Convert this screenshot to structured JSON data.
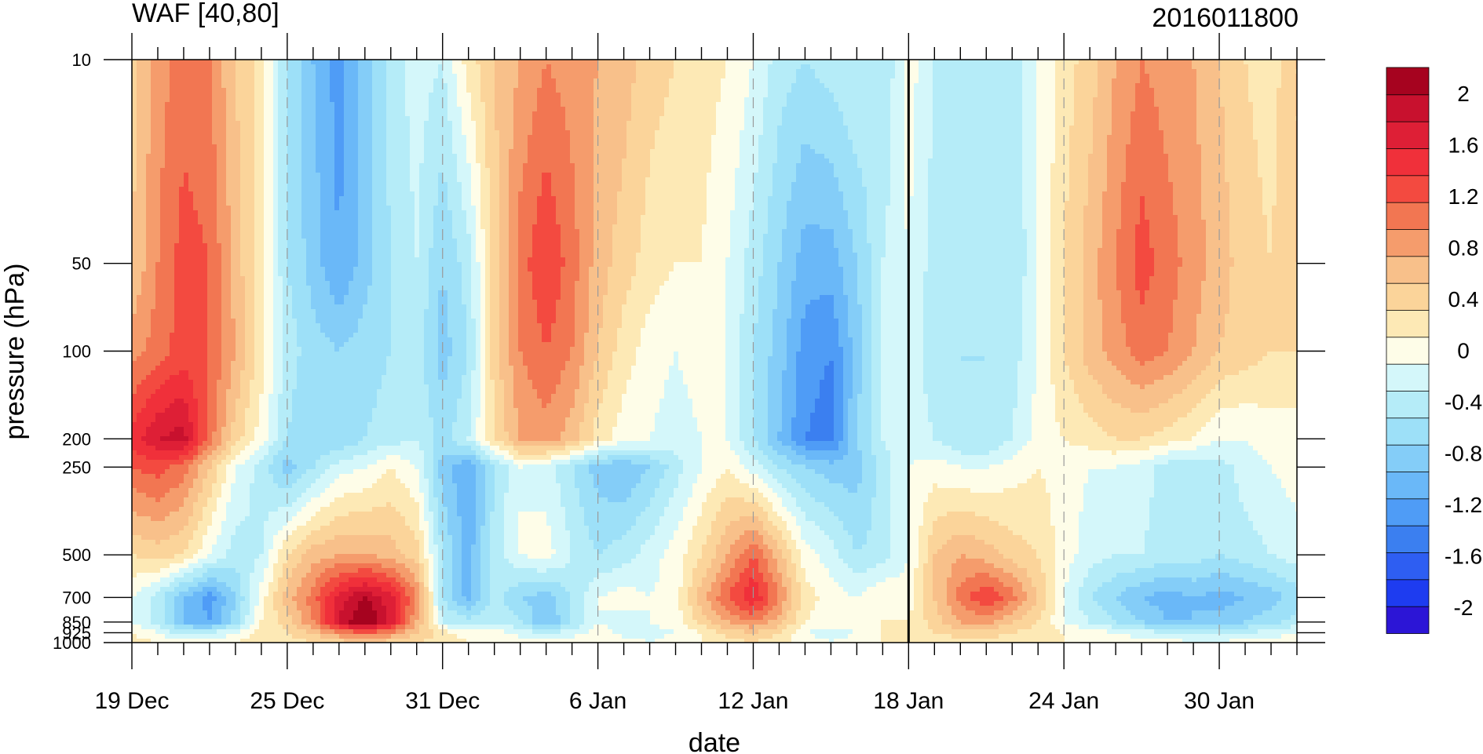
{
  "title_left": "WAF [40,80]",
  "title_right": "2016011800",
  "chart_data": {
    "type": "heatmap",
    "xlabel": "date",
    "ylabel": "pressure (hPa)",
    "x_ticks": [
      "19 Dec",
      "25 Dec",
      "31 Dec",
      "6 Jan",
      "12 Jan",
      "18 Jan",
      "24 Jan",
      "30 Jan"
    ],
    "x_tick_days": [
      0,
      6,
      12,
      18,
      24,
      30,
      36,
      42
    ],
    "x_range_days": [
      0,
      45
    ],
    "y_ticks": [
      10,
      50,
      100,
      200,
      250,
      500,
      700,
      850,
      925,
      1000
    ],
    "y_range_hPa": [
      1000,
      10
    ],
    "current_time_marker": "18 Jan",
    "colorbar": {
      "labels": [
        "2",
        "1.6",
        "1.2",
        "0.8",
        "0.4",
        "0",
        "-0.4",
        "-0.8",
        "-1.2",
        "-1.6",
        "-2"
      ],
      "levels": [
        -2.2,
        -2.0,
        -1.8,
        -1.6,
        -1.4,
        -1.2,
        -1.0,
        -0.8,
        -0.6,
        -0.4,
        -0.2,
        0,
        0.2,
        0.4,
        0.6,
        0.8,
        1.0,
        1.2,
        1.4,
        1.6,
        1.8,
        2.0,
        2.2
      ],
      "colors_bottom_to_top": [
        "#2c15d6",
        "#1e3cf0",
        "#2e5ef2",
        "#3b7ff0",
        "#4f9cf6",
        "#6ab8f8",
        "#84cdf8",
        "#9de0f8",
        "#b5ecf8",
        "#d4f7fa",
        "#fefde8",
        "#fde9b5",
        "#fbd49a",
        "#f8c08a",
        "#f59c6c",
        "#f27652",
        "#f34a40",
        "#f0303a",
        "#de1f36",
        "#c8112e",
        "#a6031f"
      ]
    },
    "grid": [
      [
        0.3,
        0.7,
        0.9,
        0.8,
        0.4,
        0.1,
        -0.6,
        -1.0,
        -1.3,
        -0.9,
        -0.5,
        -0.3,
        -0.4,
        0.1,
        0.4,
        0.6,
        0.8,
        0.7,
        0.6,
        0.5,
        0.3,
        0.2,
        0.1,
        0.0,
        -0.2,
        -0.5,
        -0.6,
        -0.5,
        -0.4,
        -0.6,
        -0.1,
        -0.4,
        -0.4,
        -0.5,
        -0.5,
        -0.2,
        0.1,
        0.3,
        0.6,
        0.8,
        0.7,
        0.6,
        0.4,
        0.2,
        0.1,
        0.4
      ],
      [
        0.4,
        0.8,
        1.1,
        1.0,
        0.5,
        0.1,
        -0.6,
        -0.9,
        -1.2,
        -0.9,
        -0.6,
        -0.4,
        -0.8,
        -0.5,
        0.3,
        0.9,
        1.2,
        0.9,
        0.5,
        0.3,
        0.1,
        0.0,
        0.0,
        -0.2,
        -0.5,
        -0.8,
        -1.1,
        -1.1,
        -0.8,
        -0.4,
        -0.2,
        -0.5,
        -0.5,
        -0.6,
        -0.6,
        -0.2,
        0.2,
        0.5,
        0.8,
        1.1,
        0.9,
        0.7,
        0.5,
        0.3,
        0.2,
        0.4
      ],
      [
        0.7,
        0.9,
        1.1,
        1.0,
        0.6,
        0.1,
        -0.5,
        -0.7,
        -0.8,
        -0.7,
        -0.6,
        -0.5,
        -0.9,
        -0.6,
        0.3,
        0.8,
        1.0,
        0.8,
        0.4,
        0.1,
        -0.1,
        -0.2,
        -0.1,
        -0.2,
        -0.6,
        -0.9,
        -1.3,
        -1.4,
        -0.9,
        -0.4,
        -0.3,
        -0.5,
        -0.6,
        -0.6,
        -0.5,
        -0.2,
        0.2,
        0.5,
        0.7,
        0.9,
        0.8,
        0.6,
        0.4,
        0.3,
        0.2,
        0.2
      ],
      [
        1.3,
        1.6,
        1.7,
        0.9,
        0.3,
        -0.1,
        -0.6,
        -0.8,
        -0.8,
        -0.6,
        -0.5,
        -0.4,
        -0.7,
        -0.4,
        0.2,
        0.6,
        0.7,
        0.5,
        0.1,
        -0.1,
        -0.2,
        -0.3,
        -0.2,
        -0.2,
        -0.6,
        -1.0,
        -1.4,
        -1.5,
        -0.8,
        -0.4,
        -0.3,
        -0.4,
        -0.6,
        -0.6,
        -0.4,
        -0.1,
        0.0,
        0.1,
        0.2,
        0.2,
        0.1,
        0.0,
        -0.2,
        -0.2,
        -0.1,
        -0.1
      ],
      [
        1.0,
        1.1,
        0.9,
        0.4,
        -0.2,
        -0.5,
        -0.9,
        -0.6,
        -0.3,
        -0.2,
        0.0,
        -0.2,
        -0.9,
        -1.2,
        -0.6,
        -0.2,
        -0.3,
        -0.6,
        -0.9,
        -1.0,
        -0.8,
        -0.5,
        -0.2,
        0.0,
        -0.3,
        -0.6,
        -0.8,
        -0.9,
        -0.9,
        -0.5,
        -0.2,
        -0.1,
        -0.2,
        -0.2,
        -0.1,
        0.0,
        -0.1,
        -0.2,
        -0.2,
        -0.3,
        -0.5,
        -0.6,
        -0.5,
        -0.3,
        -0.2,
        -0.1
      ],
      [
        0.2,
        0.3,
        0.2,
        -0.2,
        -0.5,
        -0.4,
        0.2,
        0.5,
        0.6,
        0.6,
        0.5,
        0.3,
        -0.6,
        -1.1,
        -0.5,
        -0.2,
        -0.1,
        -0.4,
        -0.6,
        -0.5,
        -0.3,
        -0.1,
        0.2,
        0.6,
        1.0,
        0.5,
        -0.1,
        -0.3,
        -0.6,
        -0.5,
        -0.2,
        0.4,
        0.6,
        0.5,
        0.3,
        0.2,
        -0.1,
        -0.3,
        -0.4,
        -0.4,
        -0.5,
        -0.5,
        -0.6,
        -0.5,
        -0.4,
        -0.3
      ],
      [
        -0.2,
        -0.5,
        -1.0,
        -1.3,
        -0.8,
        -0.1,
        0.5,
        0.9,
        1.5,
        1.8,
        1.5,
        0.8,
        -0.6,
        -1.1,
        -0.5,
        -0.8,
        -0.9,
        -0.6,
        -0.2,
        -0.1,
        -0.2,
        -0.1,
        0.5,
        1.0,
        1.4,
        0.8,
        0.1,
        -0.1,
        -0.2,
        0.0,
        -0.1,
        0.4,
        0.9,
        1.2,
        0.9,
        0.4,
        -0.2,
        -0.6,
        -0.8,
        -1.0,
        -1.1,
        -1.0,
        -1.1,
        -1.0,
        -0.9,
        -0.7
      ],
      [
        -0.2,
        -0.5,
        -1.0,
        -1.2,
        -0.7,
        0.0,
        0.3,
        0.8,
        1.6,
        2.1,
        1.5,
        0.6,
        -0.4,
        -0.5,
        -0.4,
        -0.6,
        -1.0,
        -0.6,
        -0.2,
        -0.3,
        -0.2,
        -0.1,
        0.3,
        0.6,
        0.8,
        0.5,
        0.0,
        -0.1,
        -0.1,
        0.0,
        0.0,
        0.3,
        0.6,
        0.7,
        0.4,
        0.2,
        -0.2,
        -0.4,
        -0.6,
        -0.8,
        -1.0,
        -1.0,
        -0.9,
        -0.8,
        -0.7,
        -0.5
      ],
      [
        0.0,
        -0.2,
        -0.5,
        -0.4,
        -0.2,
        0.1,
        0.2,
        0.4,
        0.8,
        1.0,
        0.8,
        0.4,
        0.1,
        -0.1,
        -0.1,
        -0.3,
        -0.4,
        -0.3,
        -0.1,
        -0.3,
        -0.3,
        -0.2,
        0.0,
        0.3,
        0.4,
        0.2,
        -0.2,
        -0.3,
        -0.2,
        0.0,
        0.0,
        0.2,
        0.3,
        0.3,
        0.2,
        0.1,
        0.0,
        -0.1,
        -0.2,
        -0.3,
        -0.4,
        -0.5,
        -0.5,
        -0.4,
        -0.3,
        -0.2
      ],
      [
        0.1,
        0.0,
        -0.1,
        -0.1,
        0.0,
        0.1,
        0.1,
        0.2,
        0.3,
        0.4,
        0.3,
        0.2,
        0.1,
        0.0,
        0.0,
        -0.1,
        -0.1,
        -0.1,
        0.0,
        -0.1,
        -0.2,
        -0.1,
        0.0,
        0.1,
        0.2,
        0.1,
        -0.1,
        -0.2,
        -0.1,
        0.0,
        0.0,
        0.1,
        0.1,
        0.1,
        0.1,
        0.0,
        0.0,
        0.0,
        -0.1,
        -0.1,
        -0.1,
        -0.2,
        -0.2,
        -0.1,
        -0.1,
        -0.1
      ]
    ]
  }
}
